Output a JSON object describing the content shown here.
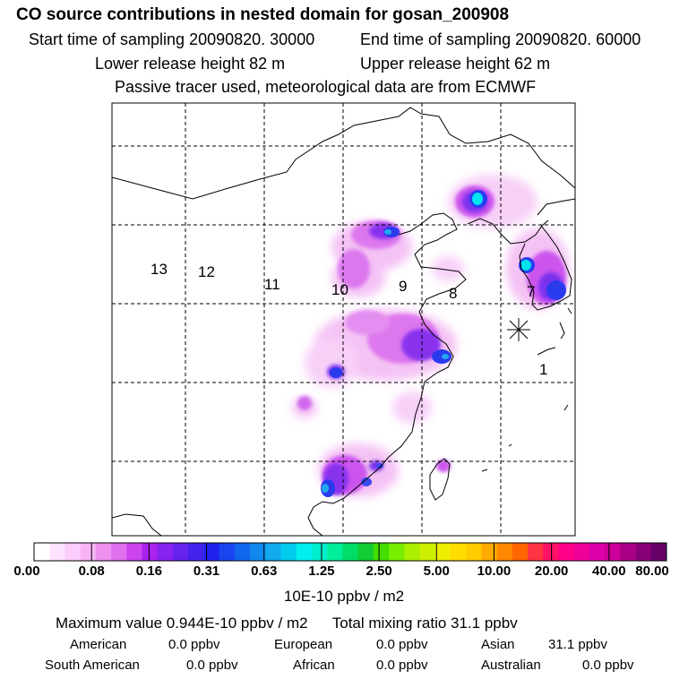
{
  "header": {
    "title": "CO  source contributions in nested domain for gosan_200908",
    "start_time": "Start time of sampling 20090820. 30000",
    "end_time": "End time of sampling 20090820. 60000",
    "lower_release": "Lower release height   82 m",
    "upper_release": "Upper release height   62 m",
    "tracer_note": "Passive tracer used, meteorological data are from ECMWF"
  },
  "map": {
    "region_labels": [
      "13",
      "12",
      "11",
      "10",
      "9",
      "8",
      "7",
      "1"
    ],
    "station_marker": "gosan receptor star"
  },
  "colorbar": {
    "ticks": [
      "0.00",
      "0.08",
      "0.16",
      "0.31",
      "0.63",
      "1.25",
      "2.50",
      "5.00",
      "10.00",
      "20.00",
      "40.00",
      "80.00"
    ],
    "unit_label": "10E-10 ppbv / m2",
    "colors": [
      "#ffffff",
      "#fde3fd",
      "#fbccfb",
      "#f6b4f6",
      "#ee90ee",
      "#e070ee",
      "#cc44ee",
      "#aa22ee",
      "#8822ee",
      "#6622ee",
      "#4422ee",
      "#2222ee",
      "#1a44ee",
      "#1166ee",
      "#1188ee",
      "#11aaee",
      "#00ccee",
      "#00eeee",
      "#00eecc",
      "#00ee99",
      "#00dd66",
      "#11cc33",
      "#44dd00",
      "#77ee00",
      "#aaee00",
      "#ccee00",
      "#eeee00",
      "#ffdd00",
      "#ffcc00",
      "#ffaa00",
      "#ff8800",
      "#ff6600",
      "#ff3344",
      "#ff1166",
      "#ff0088",
      "#ee0099",
      "#dd00aa",
      "#cc0099",
      "#aa0088",
      "#880077",
      "#660066"
    ]
  },
  "summary": {
    "max_value": "Maximum value  0.944E-10 ppbv / m2",
    "total_mixing": "Total mixing ratio       31.1 ppbv",
    "american_label": "American",
    "american_value": "0.0 ppbv",
    "european_label": "European",
    "european_value": "0.0 ppbv",
    "asian_label": "Asian",
    "asian_value": "31.1 ppbv",
    "south_american_label": "South American",
    "south_american_value": "0.0 ppbv",
    "african_label": "African",
    "african_value": "0.0 ppbv",
    "australian_label": "Australian",
    "australian_value": "0.0 ppbv"
  }
}
